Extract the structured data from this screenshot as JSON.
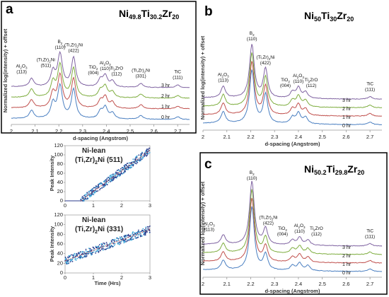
{
  "figure": {
    "series_colors": {
      "0 hr": "#4a7fc1",
      "1 hr": "#c0504d",
      "2 hr": "#7ead3f",
      "3 hr": "#8064a2"
    },
    "inset_colors": {
      "dots": "#3aa6d8",
      "dots_dark": "#2b3b8c",
      "fit": "#c0504d"
    }
  },
  "chart_data": [
    {
      "panel": "a",
      "type": "line",
      "composition": {
        "ni": "49.8",
        "ti": "30.2",
        "zr": "20"
      },
      "xlabel": "d-spacing (Angstrom)",
      "ylabel": "Normalized log(intensity) + offset",
      "xlim": [
        2.0,
        2.75
      ],
      "x_ticks": [
        "2",
        "2.1",
        "2.2",
        "2.3",
        "2.4",
        "2.5",
        "2.6",
        "2.7"
      ],
      "series": [
        {
          "name": "0 hr",
          "offset": 0
        },
        {
          "name": "1 hr",
          "offset": 1
        },
        {
          "name": "2 hr",
          "offset": 2
        },
        {
          "name": "3 hr",
          "offset": 3
        }
      ],
      "peaks": [
        {
          "label": "Al2O3",
          "hkl": "(113)",
          "d": 2.085,
          "h": 0.25
        },
        {
          "label": "(Ti,Zr)2Ni",
          "hkl": "(511)",
          "d": 2.175,
          "h": 0.45
        },
        {
          "label": "B2",
          "hkl": "(110)",
          "d": 2.205,
          "h": 1.0
        },
        {
          "label": "(Ti,Zr)2Ni",
          "hkl": "(422)",
          "d": 2.262,
          "h": 0.9
        },
        {
          "label": "TiO2",
          "hkl": "(004)",
          "d": 2.375,
          "h": 0.22
        },
        {
          "label": "Al2O3",
          "hkl": "(110)",
          "d": 2.395,
          "h": 0.35
        },
        {
          "label": "Ti2ZrO",
          "hkl": "(112)",
          "d": 2.425,
          "h": 0.18
        },
        {
          "label": "(Ti,Zr)2Ni",
          "hkl": "(331)",
          "d": 2.545,
          "h": 0.12
        },
        {
          "label": "TiC",
          "hkl": "(111)",
          "d": 2.7,
          "h": 0.08
        }
      ]
    },
    {
      "panel": "b",
      "type": "line",
      "composition": {
        "ni": "50",
        "ti": "30",
        "zr": "20"
      },
      "xlabel": "d-spacing (Angstrom)",
      "ylabel": "Normalized log(intensity) + offset",
      "xlim": [
        2.0,
        2.75
      ],
      "x_ticks": [
        "2",
        "2.1",
        "2.2",
        "2.3",
        "2.4",
        "2.5",
        "2.6",
        "2.7"
      ],
      "series": [
        {
          "name": "0 hr",
          "offset": 0
        },
        {
          "name": "1 hr",
          "offset": 1
        },
        {
          "name": "2 hr",
          "offset": 2
        },
        {
          "name": "3 hr",
          "offset": 3
        }
      ],
      "peaks": [
        {
          "label": "Al2O3",
          "hkl": "(113)",
          "d": 2.085,
          "h": 0.22
        },
        {
          "label": "B2",
          "hkl": "(110)",
          "d": 2.205,
          "h": 1.0
        },
        {
          "label": "(Ti,Zr)2Ni",
          "hkl": "(422)",
          "d": 2.262,
          "h": 0.55
        },
        {
          "label": "TiO2",
          "hkl": "(004)",
          "d": 2.375,
          "h": 0.12
        },
        {
          "label": "Al2O3",
          "hkl": "(110)",
          "d": 2.4,
          "h": 0.2
        },
        {
          "label": "Ti2ZrO",
          "hkl": "(112)",
          "d": 2.43,
          "h": 0.12
        },
        {
          "label": "TiC",
          "hkl": "(111)",
          "d": 2.7,
          "h": 0.05
        }
      ]
    },
    {
      "panel": "c",
      "type": "line",
      "composition": {
        "ni": "50.2",
        "ti": "29.8",
        "zr": "20"
      },
      "xlabel": "d-spacing (Angstrom)",
      "ylabel": "Normalized log(intensity) + offset",
      "xlim": [
        2.0,
        2.75
      ],
      "x_ticks": [
        "2",
        "2.1",
        "2.2",
        "2.3",
        "2.4",
        "2.5",
        "2.6",
        "2.7"
      ],
      "series": [
        {
          "name": "0 hr",
          "offset": 0
        },
        {
          "name": "1 hr",
          "offset": 1
        },
        {
          "name": "2 hr",
          "offset": 2
        },
        {
          "name": "3 hr",
          "offset": 3
        }
      ],
      "peaks": [
        {
          "label": "Al2O3",
          "hkl": "(113)",
          "d": 2.085,
          "h": 0.15
        },
        {
          "label": "B2",
          "hkl": "(110)",
          "d": 2.205,
          "h": 1.0
        },
        {
          "label": "(Ti,Zr)2Ni",
          "hkl": "(422)",
          "d": 2.262,
          "h": 0.25
        },
        {
          "label": "TiO2",
          "hkl": "(004)",
          "d": 2.375,
          "h": 0.08
        },
        {
          "label": "Al2O3",
          "hkl": "(110)",
          "d": 2.405,
          "h": 0.12
        },
        {
          "label": "Ti2ZrO",
          "hkl": "(112)",
          "d": 2.44,
          "h": 0.08
        },
        {
          "label": "TiC",
          "hkl": "(111)",
          "d": 2.7,
          "h": 0.04
        }
      ]
    },
    {
      "panel": "a-inset-top",
      "type": "scatter",
      "title": {
        "line1": "Ni-lean",
        "phase": "(Ti,Zr)2Ni",
        "hkl": "(511)"
      },
      "xlabel": "",
      "ylabel": "Peak Intensity",
      "xlim": [
        0,
        3
      ],
      "ylim": [
        0,
        120
      ],
      "x_ticks": [
        "0",
        "1",
        "2",
        "3"
      ],
      "y_ticks": [
        "0",
        "20",
        "40",
        "60",
        "80",
        "100",
        "120"
      ],
      "onset_time": 0.55,
      "fit": {
        "t0": 0.55,
        "y0": 0,
        "t1": 3.0,
        "y1": 110
      }
    },
    {
      "panel": "a-inset-bottom",
      "type": "scatter",
      "title": {
        "line1": "Ni-lean",
        "phase": "(Ti,Zr)2Ni",
        "hkl": "(331)"
      },
      "xlabel": "Time (Hrs)",
      "ylabel": "Peak Intensity",
      "xlim": [
        0,
        3
      ],
      "ylim": [
        0,
        120
      ],
      "x_ticks": [
        "0",
        "1",
        "2",
        "3"
      ],
      "y_ticks": [
        "0",
        "20",
        "40",
        "60",
        "80",
        "100",
        "120"
      ],
      "onset_time": 0.0,
      "fit": {
        "t0": 0.0,
        "y0": 25,
        "t1": 3.0,
        "y1": 90
      }
    }
  ]
}
